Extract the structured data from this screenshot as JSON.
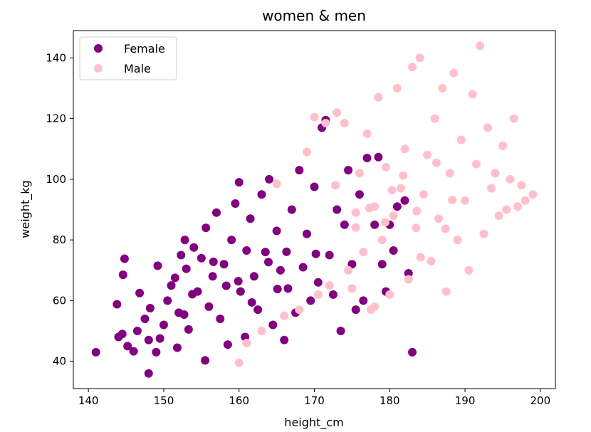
{
  "chart_data": {
    "type": "scatter",
    "title": "women & men",
    "xlabel": "height_cm",
    "ylabel": "weight_kg",
    "xlim": [
      138,
      202
    ],
    "ylim": [
      31,
      149
    ],
    "xticks": [
      140,
      150,
      160,
      170,
      180,
      190,
      200
    ],
    "yticks": [
      40,
      60,
      80,
      100,
      120,
      140
    ],
    "grid": false,
    "legend_position": "top-left",
    "series": [
      {
        "name": "Female",
        "color": "#800080",
        "points": [
          [
            141,
            43
          ],
          [
            144,
            48
          ],
          [
            144.5,
            49
          ],
          [
            144.8,
            73.8
          ],
          [
            144.6,
            68.5
          ],
          [
            143.8,
            58.8
          ],
          [
            145.2,
            45
          ],
          [
            146,
            43.3
          ],
          [
            146.5,
            50
          ],
          [
            146.8,
            62.5
          ],
          [
            147.5,
            54
          ],
          [
            148,
            47
          ],
          [
            148,
            36
          ],
          [
            148.2,
            57.5
          ],
          [
            149,
            43
          ],
          [
            149.5,
            47.5
          ],
          [
            149.2,
            71.5
          ],
          [
            150,
            52
          ],
          [
            150.5,
            60
          ],
          [
            151,
            65
          ],
          [
            151.5,
            67.5
          ],
          [
            151.8,
            44.5
          ],
          [
            152,
            56
          ],
          [
            152.3,
            75
          ],
          [
            152.8,
            80
          ],
          [
            153,
            70.5
          ],
          [
            153.3,
            50.5
          ],
          [
            154,
            77.5
          ],
          [
            154.5,
            63
          ],
          [
            155,
            74
          ],
          [
            155.5,
            40.3
          ],
          [
            155.6,
            84
          ],
          [
            156,
            58
          ],
          [
            156.5,
            68
          ],
          [
            157,
            89
          ],
          [
            157.5,
            54
          ],
          [
            158,
            72
          ],
          [
            158.5,
            45.5
          ],
          [
            159,
            80
          ],
          [
            159.5,
            92
          ],
          [
            160,
            99
          ],
          [
            160.2,
            63
          ],
          [
            160.8,
            48
          ],
          [
            161,
            76.5
          ],
          [
            161.5,
            87
          ],
          [
            162,
            68
          ],
          [
            162.5,
            57
          ],
          [
            163,
            95
          ],
          [
            163.5,
            76
          ],
          [
            164,
            100
          ],
          [
            164.5,
            52
          ],
          [
            165,
            83
          ],
          [
            165.5,
            70
          ],
          [
            166,
            47
          ],
          [
            166.5,
            64
          ],
          [
            167,
            90
          ],
          [
            167.5,
            56
          ],
          [
            168,
            103
          ],
          [
            168.5,
            71
          ],
          [
            169,
            82
          ],
          [
            169.5,
            60
          ],
          [
            170,
            97.5
          ],
          [
            170.5,
            66
          ],
          [
            171,
            117
          ],
          [
            171.5,
            119.5
          ],
          [
            172,
            75
          ],
          [
            172.5,
            62
          ],
          [
            173,
            90
          ],
          [
            173.5,
            50
          ],
          [
            174,
            85
          ],
          [
            174.5,
            103
          ],
          [
            175,
            72
          ],
          [
            175.5,
            57
          ],
          [
            176,
            95
          ],
          [
            176.5,
            60
          ],
          [
            177,
            107
          ],
          [
            178,
            85
          ],
          [
            178.5,
            107.3
          ],
          [
            179,
            72
          ],
          [
            179.5,
            63
          ],
          [
            180,
            85
          ],
          [
            180.5,
            76.5
          ],
          [
            181,
            91
          ],
          [
            182,
            93
          ],
          [
            182.5,
            69
          ],
          [
            183,
            43
          ],
          [
            156.6,
            72.8
          ],
          [
            161.7,
            59.4
          ],
          [
            153.8,
            62.1
          ],
          [
            166.3,
            76.1
          ],
          [
            158.3,
            64.9
          ],
          [
            163.9,
            72.7
          ],
          [
            159.9,
            66.4
          ],
          [
            170.2,
            75.4
          ],
          [
            152.7,
            55.4
          ],
          [
            165.1,
            63.8
          ]
        ]
      },
      {
        "name": "Male",
        "color": "#ffc0cb",
        "points": [
          [
            160,
            39.5
          ],
          [
            161,
            46
          ],
          [
            163,
            50
          ],
          [
            165,
            98.5
          ],
          [
            166,
            55
          ],
          [
            168,
            57
          ],
          [
            169,
            109
          ],
          [
            170,
            120.5
          ],
          [
            170.5,
            62
          ],
          [
            171.5,
            118.5
          ],
          [
            172,
            65
          ],
          [
            172.8,
            98
          ],
          [
            173,
            122
          ],
          [
            174,
            118.5
          ],
          [
            174.5,
            70
          ],
          [
            175,
            64
          ],
          [
            175.5,
            89
          ],
          [
            176,
            102
          ],
          [
            176.5,
            76
          ],
          [
            177,
            115
          ],
          [
            177.5,
            57
          ],
          [
            178,
            91
          ],
          [
            178.5,
            127
          ],
          [
            179,
            80
          ],
          [
            179.5,
            104
          ],
          [
            180,
            62
          ],
          [
            180.5,
            88
          ],
          [
            181,
            130
          ],
          [
            181.5,
            97
          ],
          [
            182,
            110
          ],
          [
            182.5,
            67
          ],
          [
            183,
            137
          ],
          [
            183.5,
            84
          ],
          [
            184,
            140
          ],
          [
            184.5,
            95
          ],
          [
            185,
            108
          ],
          [
            185.5,
            73
          ],
          [
            186,
            120
          ],
          [
            186.5,
            87
          ],
          [
            187,
            130
          ],
          [
            187.5,
            63
          ],
          [
            188,
            102
          ],
          [
            188.5,
            135
          ],
          [
            189,
            80
          ],
          [
            189.5,
            113
          ],
          [
            190,
            93
          ],
          [
            190.5,
            70
          ],
          [
            191,
            128
          ],
          [
            191.5,
            105
          ],
          [
            192,
            144
          ],
          [
            192.5,
            82
          ],
          [
            193,
            117
          ],
          [
            193.5,
            97
          ],
          [
            194,
            102
          ],
          [
            194.5,
            88
          ],
          [
            195,
            111
          ],
          [
            195.5,
            90
          ],
          [
            196,
            100
          ],
          [
            196.5,
            120
          ],
          [
            197,
            91
          ],
          [
            197.5,
            98
          ],
          [
            198,
            93
          ],
          [
            199,
            95
          ],
          [
            178,
            58
          ],
          [
            180.3,
            96.4
          ],
          [
            183.6,
            89.5
          ],
          [
            187.4,
            83.7
          ],
          [
            177.3,
            90.5
          ],
          [
            184.1,
            74.3
          ],
          [
            181.8,
            101.2
          ],
          [
            186.2,
            105.4
          ],
          [
            179.4,
            85.8
          ],
          [
            188.3,
            93.2
          ],
          [
            175.5,
            84.1
          ]
        ]
      }
    ]
  }
}
